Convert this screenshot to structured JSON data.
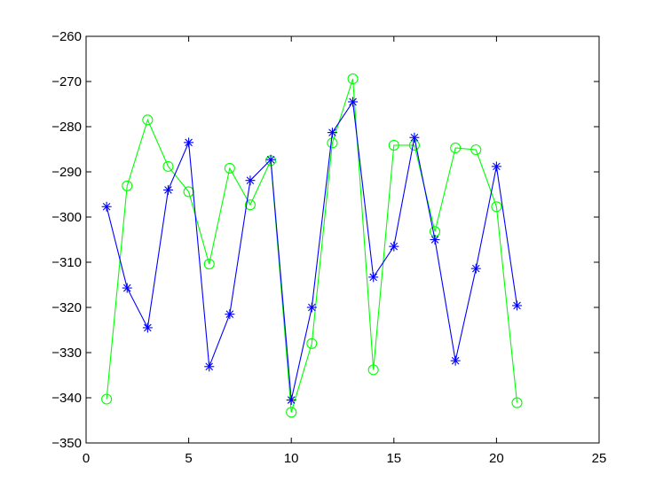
{
  "chart_data": {
    "type": "line",
    "title": "",
    "xlabel": "",
    "ylabel": "",
    "xlim": [
      0,
      25
    ],
    "ylim": [
      -350,
      -260
    ],
    "x_ticks": [
      0,
      5,
      10,
      15,
      20,
      25
    ],
    "y_ticks": [
      -350,
      -340,
      -330,
      -320,
      -310,
      -300,
      -290,
      -280,
      -270,
      -260
    ],
    "x_tick_labels": [
      "0",
      "5",
      "10",
      "15",
      "20",
      "25"
    ],
    "y_tick_labels": [
      "−350",
      "−340",
      "−330",
      "−320",
      "−310",
      "−300",
      "−290",
      "−280",
      "−270",
      "−260"
    ],
    "grid": false,
    "x": [
      1,
      2,
      3,
      4,
      5,
      6,
      7,
      8,
      9,
      10,
      11,
      12,
      13,
      14,
      15,
      16,
      17,
      18,
      19,
      20,
      21
    ],
    "series": [
      {
        "color": "#0000ff",
        "marker": "asterisk",
        "values": [
          -297.7,
          -315.7,
          -324.5,
          -294.0,
          -283.5,
          -333.1,
          -321.5,
          -291.9,
          -287.3,
          -340.5,
          -320.0,
          -281.3,
          -274.5,
          -313.3,
          -306.5,
          -282.4,
          -305.0,
          -331.8,
          -311.4,
          -288.8,
          -319.6
        ]
      },
      {
        "color": "#00ff00",
        "marker": "circle",
        "values": [
          -340.3,
          -293.1,
          -278.5,
          -288.8,
          -294.4,
          -310.4,
          -289.2,
          -297.3,
          -287.5,
          -343.2,
          -328.0,
          -283.6,
          -269.4,
          -333.8,
          -284.1,
          -284.1,
          -303.2,
          -284.7,
          -285.1,
          -297.7,
          -341.1
        ]
      }
    ]
  }
}
